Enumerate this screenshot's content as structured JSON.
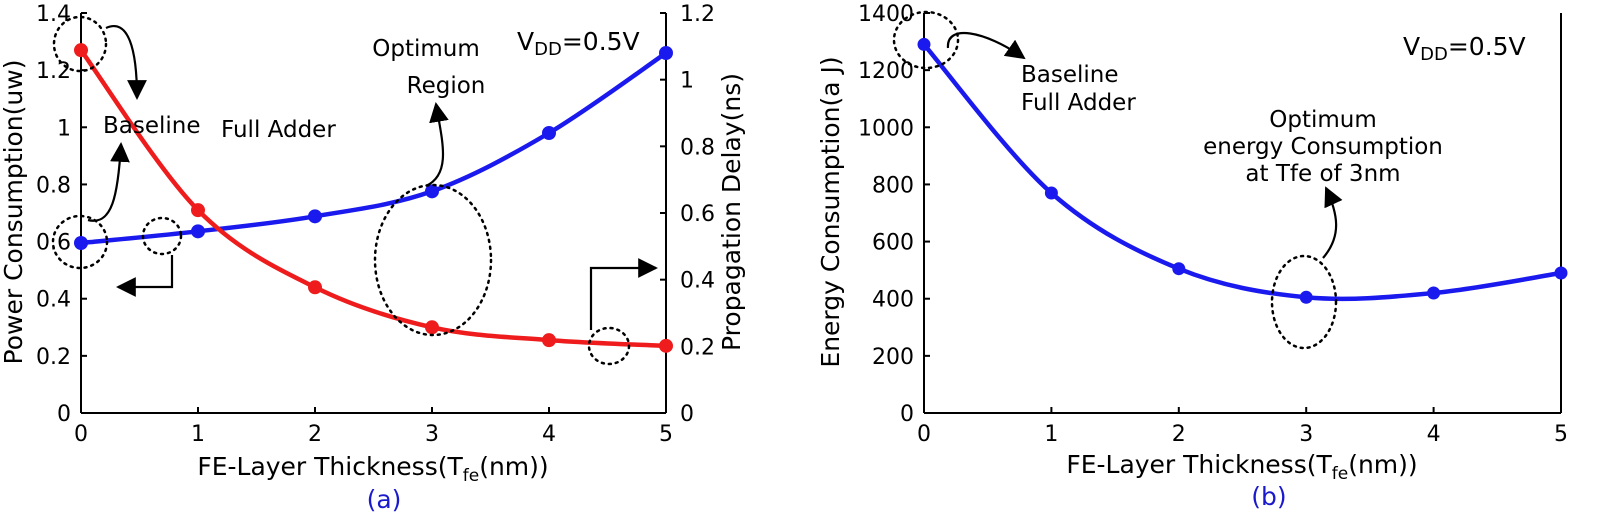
{
  "chart_data": [
    {
      "type": "line",
      "panel_label": "(a)",
      "x": [
        0,
        1,
        2,
        3,
        4,
        5
      ],
      "xlabel_main": "FE-Layer Thickness(T",
      "xlabel_sub": "fe",
      "xlabel_tail": "(nm))",
      "xlim": [
        0,
        5
      ],
      "xticks": [
        "0",
        "1",
        "2",
        "3",
        "4",
        "5"
      ],
      "ylabel_left": "Power Consumption(uw)",
      "ylim_left": [
        0,
        1.4
      ],
      "yticks_left": [
        "0",
        "0.2",
        "0.4",
        "0.6",
        "0.8",
        "1",
        "1.2",
        "1.4"
      ],
      "ylabel_right": "Propagation Delay(ns)",
      "ylim_right": [
        0,
        1.2
      ],
      "yticks_right": [
        "0",
        "0.2",
        "0.4",
        "0.6",
        "0.8",
        "1",
        "1.2"
      ],
      "series": [
        {
          "name": "Propagation Delay",
          "axis": "right",
          "color": "#1a1aee",
          "values": [
            0.51,
            0.545,
            0.59,
            0.665,
            0.84,
            1.08
          ]
        },
        {
          "name": "Power Consumption",
          "axis": "left",
          "color": "#ee1c1c",
          "values": [
            1.27,
            0.71,
            0.44,
            0.3,
            0.255,
            0.235
          ]
        }
      ],
      "annotations": {
        "vdd_main": "V",
        "vdd_sub": "DD",
        "vdd_tail": "=0.5V",
        "baseline": "Baseline",
        "full_adder": "Full Adder",
        "optimum_line1": "Optimum",
        "optimum_line2": "Region"
      }
    },
    {
      "type": "line",
      "panel_label": "(b)",
      "x": [
        0,
        1,
        2,
        3,
        4,
        5
      ],
      "xlabel_main": "FE-Layer Thickness(T",
      "xlabel_sub": "fe",
      "xlabel_tail": "(nm))",
      "xlim": [
        0,
        5
      ],
      "xticks": [
        "0",
        "1",
        "2",
        "3",
        "4",
        "5"
      ],
      "ylabel": "Energy Consumption(a J)",
      "ylim": [
        0,
        1400
      ],
      "yticks": [
        "0",
        "200",
        "400",
        "600",
        "800",
        "1000",
        "1200",
        "1400"
      ],
      "series": [
        {
          "name": "Energy Consumption",
          "color": "#1a1aee",
          "values": [
            1290,
            770,
            505,
            405,
            420,
            490
          ]
        }
      ],
      "annotations": {
        "vdd_main": "V",
        "vdd_sub": "DD",
        "vdd_tail": "=0.5V",
        "baseline": "Baseline",
        "full_adder": "Full Adder",
        "optimum_line1": "Optimum",
        "optimum_line2": "energy Consumption",
        "optimum_line3": "at Tfe of 3nm"
      }
    }
  ]
}
